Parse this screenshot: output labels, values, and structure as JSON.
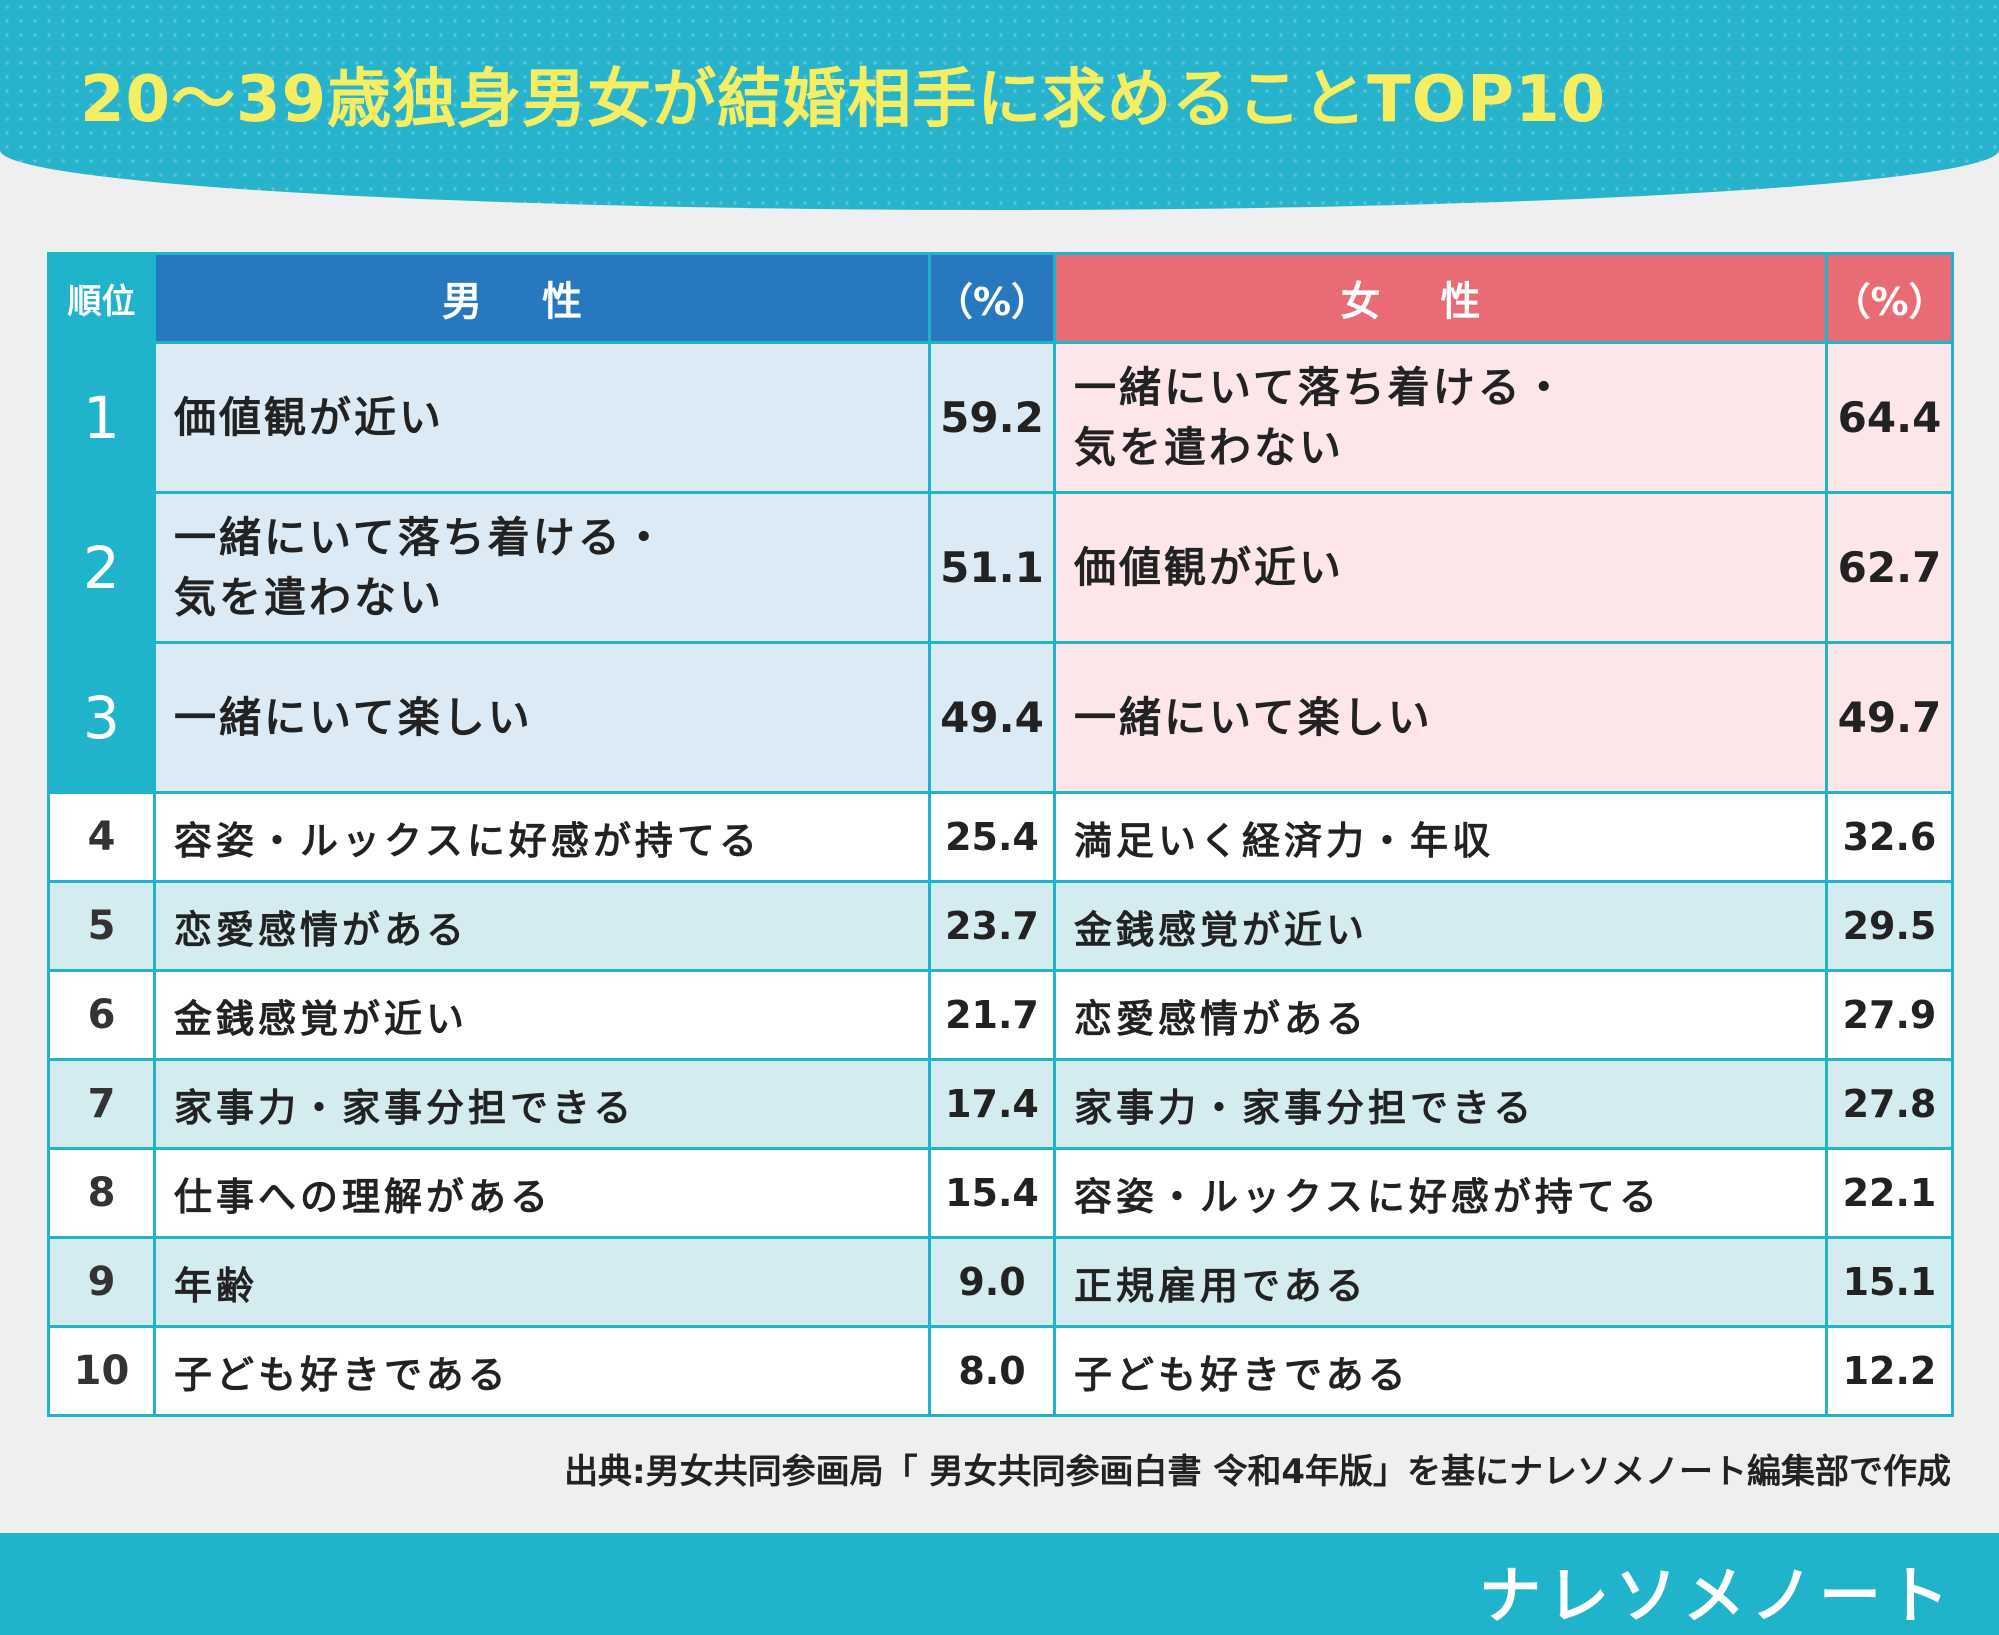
{
  "title": "20～39歳独身男女が結婚相手に求めることTOP10",
  "colors": {
    "header": "#27b3cc",
    "title_text": "#f6ee62",
    "male": "#2878c0",
    "female": "#e86b76",
    "teal": "#1fb3cc"
  },
  "table": {
    "headers": {
      "rank": "順位",
      "male": "男性",
      "male_pct": "（%）",
      "female": "女性",
      "female_pct": "（%）"
    },
    "rows": [
      {
        "rank": "1",
        "male_item": "価値観が近い",
        "male_pct": "59.2",
        "female_item": "一緒にいて落ち着ける・\n気を遣わない",
        "female_pct": "64.4"
      },
      {
        "rank": "2",
        "male_item": "一緒にいて落ち着ける・\n気を遣わない",
        "male_pct": "51.1",
        "female_item": "価値観が近い",
        "female_pct": "62.7"
      },
      {
        "rank": "3",
        "male_item": "一緒にいて楽しい",
        "male_pct": "49.4",
        "female_item": "一緒にいて楽しい",
        "female_pct": "49.7"
      },
      {
        "rank": "4",
        "male_item": "容姿・ルックスに好感が持てる",
        "male_pct": "25.4",
        "female_item": "満足いく経済力・年収",
        "female_pct": "32.6"
      },
      {
        "rank": "5",
        "male_item": "恋愛感情がある",
        "male_pct": "23.7",
        "female_item": "金銭感覚が近い",
        "female_pct": "29.5"
      },
      {
        "rank": "6",
        "male_item": "金銭感覚が近い",
        "male_pct": "21.7",
        "female_item": "恋愛感情がある",
        "female_pct": "27.9"
      },
      {
        "rank": "7",
        "male_item": "家事力・家事分担できる",
        "male_pct": "17.4",
        "female_item": "家事力・家事分担できる",
        "female_pct": "27.8"
      },
      {
        "rank": "8",
        "male_item": "仕事への理解がある",
        "male_pct": "15.4",
        "female_item": "容姿・ルックスに好感が持てる",
        "female_pct": "22.1"
      },
      {
        "rank": "9",
        "male_item": "年齢",
        "male_pct": "9.0",
        "female_item": "正規雇用である",
        "female_pct": "15.1"
      },
      {
        "rank": "10",
        "male_item": "子ども好きである",
        "male_pct": "8.0",
        "female_item": "子ども好きである",
        "female_pct": "12.2"
      }
    ]
  },
  "source": "出典:男女共同参画局「 男女共同参画白書 令和4年版」を基にナレソメノート編集部で作成",
  "logo": "ナレソメノート"
}
